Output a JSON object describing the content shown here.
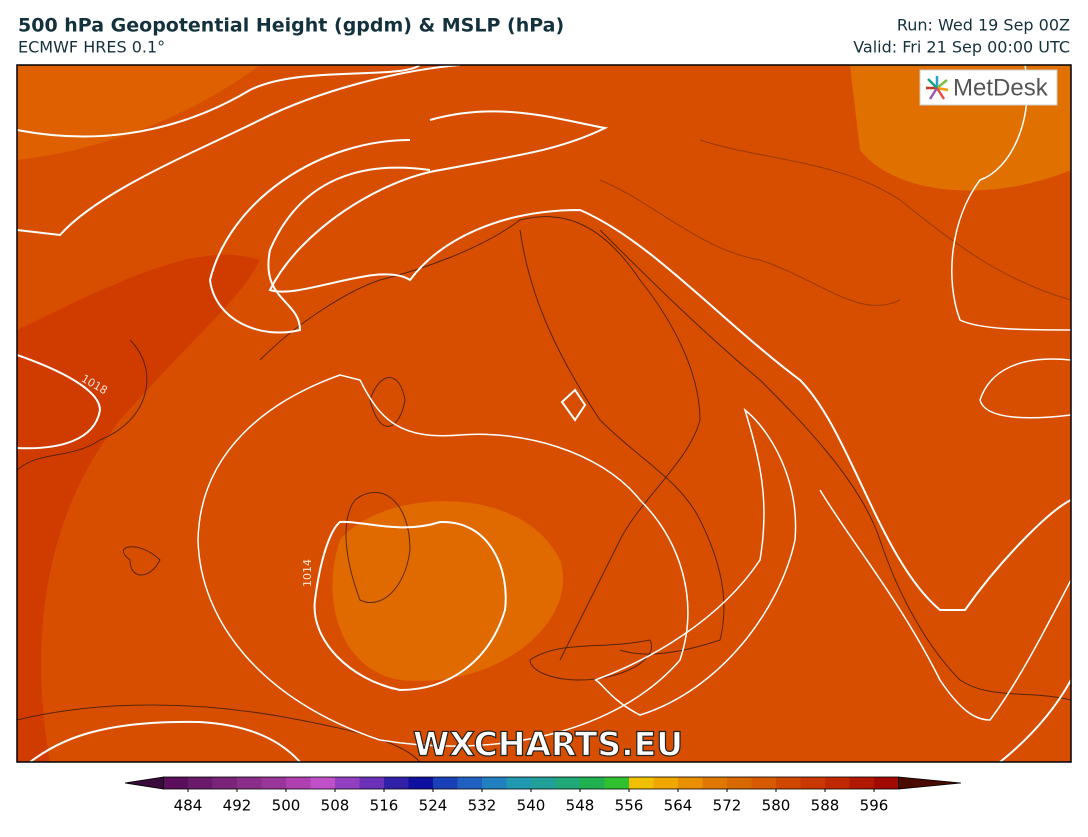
{
  "header": {
    "title": "500 hPa Geopotential Height (gpdm) & MSLP (hPa)",
    "subtitle": "ECMWF HRES 0.1°",
    "run": "Run: Wed 19 Sep 00Z",
    "valid": "Valid: Fri 21 Sep 00:00 UTC"
  },
  "map": {
    "logo": "MetDesk",
    "watermark": "WXCHARTS.EU",
    "contour_labels": [
      "1018",
      "1014"
    ]
  },
  "colorbar": {
    "range": [
      480,
      600
    ],
    "step": 4,
    "colors": [
      "#5a0f5a",
      "#6a1a6a",
      "#7a257a",
      "#8a2e8a",
      "#9a359a",
      "#b040b0",
      "#c050c8",
      "#9040c0",
      "#6a30b8",
      "#3020a8",
      "#1010a0",
      "#1a40b8",
      "#2060c0",
      "#2080c0",
      "#2098b0",
      "#20a098",
      "#20a878",
      "#20b050",
      "#30c030",
      "#f0c000",
      "#f0a800",
      "#e89000",
      "#e07800",
      "#d86800",
      "#d85a00",
      "#d04800",
      "#c83800",
      "#c02800",
      "#b01800",
      "#a00a00"
    ],
    "under_color": "#3a0a3a",
    "over_color": "#4a0a00",
    "ticks": [
      484,
      492,
      500,
      508,
      516,
      524,
      532,
      540,
      548,
      556,
      564,
      572,
      580,
      588,
      596
    ]
  }
}
